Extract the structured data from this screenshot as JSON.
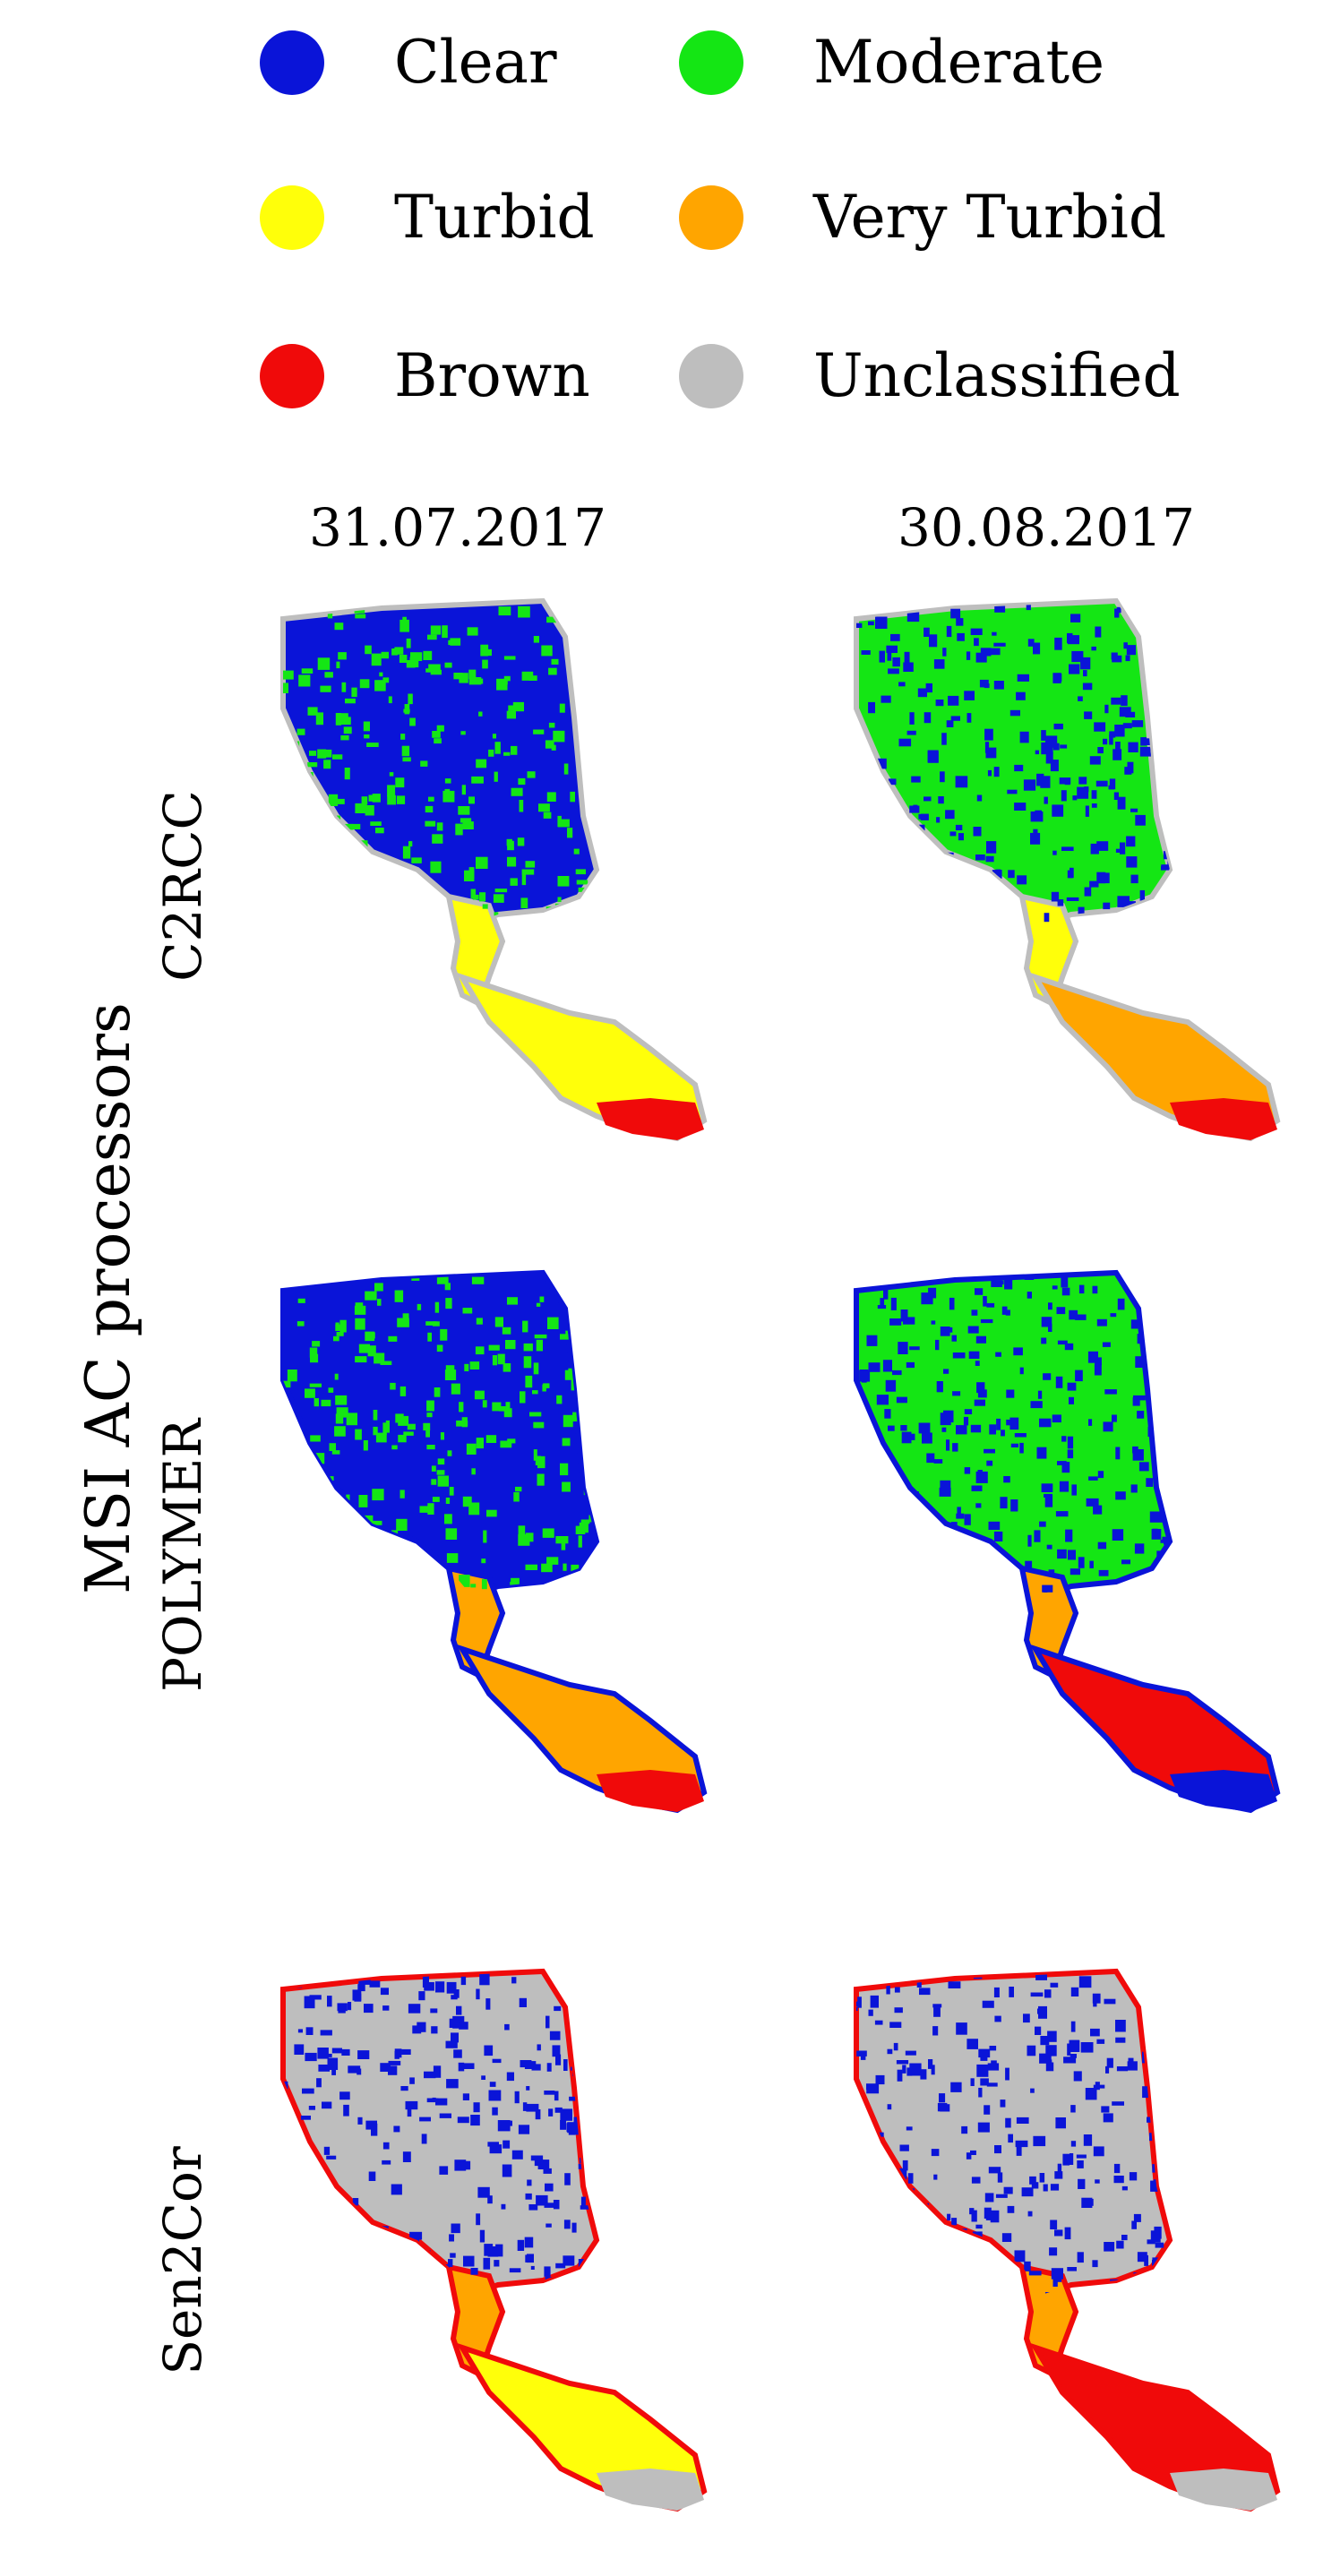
{
  "legend": [
    {
      "label": "Clear",
      "color": "#0a14d8"
    },
    {
      "label": "Moderate",
      "color": "#14e614"
    },
    {
      "label": "Turbid",
      "color": "#ffff0a"
    },
    {
      "label": "Very Turbid",
      "color": "#ffa500"
    },
    {
      "label": "Brown",
      "color": "#f00a0a"
    },
    {
      "label": "Unclassified",
      "color": "#bebebe"
    }
  ],
  "dates": [
    "31.07.2017",
    "30.08.2017"
  ],
  "axis_title": "MSI AC processors",
  "processors": [
    "C2RCC",
    "POLYMER",
    "Sen2Cor"
  ],
  "maps": [
    {
      "processor": "C2RCC",
      "date": "31.07.2017",
      "north": "Clear",
      "north_mix": "Moderate",
      "middle": "Turbid",
      "south": "Turbid",
      "south_tip": "Brown",
      "edge": "Unclassified"
    },
    {
      "processor": "C2RCC",
      "date": "30.08.2017",
      "north": "Moderate",
      "north_mix": "Clear",
      "middle": "Turbid",
      "south": "Very Turbid",
      "south_tip": "Brown",
      "edge": "Unclassified"
    },
    {
      "processor": "POLYMER",
      "date": "31.07.2017",
      "north": "Clear",
      "north_mix": "Moderate",
      "middle": "Very Turbid",
      "south": "Very Turbid",
      "south_tip": "Brown",
      "edge": "Clear"
    },
    {
      "processor": "POLYMER",
      "date": "30.08.2017",
      "north": "Moderate",
      "north_mix": "Clear",
      "middle": "Very Turbid",
      "south": "Brown",
      "south_tip": "Clear",
      "edge": "Clear"
    },
    {
      "processor": "Sen2Cor",
      "date": "31.07.2017",
      "north": "Unclassified",
      "north_mix": "Clear",
      "middle": "Very Turbid",
      "south": "Turbid",
      "south_tip": "Unclassified",
      "edge": "Brown"
    },
    {
      "processor": "Sen2Cor",
      "date": "30.08.2017",
      "north": "Unclassified",
      "north_mix": "Clear",
      "middle": "Very Turbid",
      "south": "Brown",
      "south_tip": "Unclassified",
      "edge": "Brown"
    }
  ]
}
